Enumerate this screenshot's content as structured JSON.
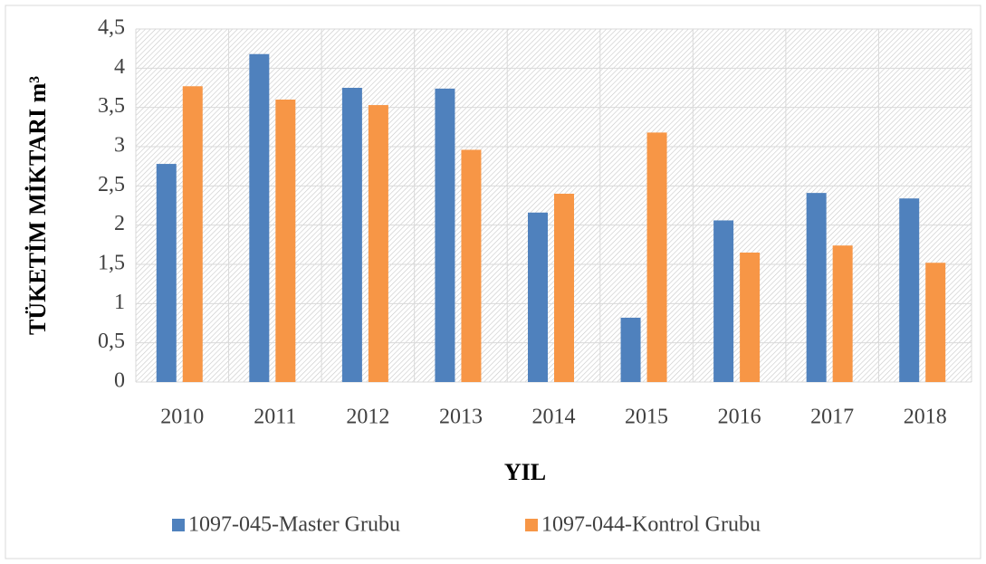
{
  "chart_data": {
    "type": "bar",
    "x_label": "YIL",
    "y_label": "TÜKETİM MİKTARI m³",
    "categories": [
      "2010",
      "2011",
      "2012",
      "2013",
      "2014",
      "2015",
      "2016",
      "2017",
      "2018"
    ],
    "series": [
      {
        "name": "1097-045-Master Grubu",
        "color": "#4f81bd",
        "values": [
          2.78,
          4.18,
          3.75,
          3.74,
          2.16,
          0.82,
          2.06,
          2.41,
          2.34
        ]
      },
      {
        "name": "1097-044-Kontrol Grubu",
        "color": "#f79646",
        "values": [
          3.77,
          3.6,
          3.53,
          2.96,
          2.4,
          3.18,
          1.65,
          1.74,
          1.52
        ]
      }
    ],
    "ylim": [
      0,
      4.5
    ],
    "yticks": [
      0,
      {
        "value": 0.5,
        "label": "0,5"
      },
      1,
      {
        "value": 1.5,
        "label": "1,5"
      },
      2,
      {
        "value": 2.5,
        "label": "2,5"
      },
      3,
      {
        "value": 3.5,
        "label": "3,5"
      },
      4,
      {
        "value": 4.5,
        "label": "4,5"
      }
    ],
    "grid": true,
    "legend": "bottom"
  }
}
